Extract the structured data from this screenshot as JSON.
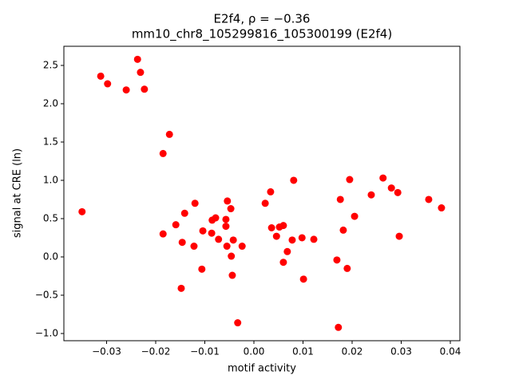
{
  "chart_data": {
    "type": "scatter",
    "title": "E2f4, ρ = −0.36",
    "subtitle": "mm10_chr8_105299816_105300199 (E2f4)",
    "x_label": "motif activity",
    "y_label": "signal at CRE (ln)",
    "color": "red",
    "x": [
      -0.035,
      -0.0312,
      -0.0298,
      -0.026,
      -0.0237,
      -0.0231,
      -0.0223,
      -0.0172,
      -0.0185,
      -0.0185,
      -0.0159,
      -0.0141,
      -0.0146,
      -0.0148,
      -0.012,
      -0.0122,
      -0.0106,
      -0.0104,
      -0.0086,
      -0.0085,
      -0.0078,
      -0.0072,
      -0.0057,
      -0.0057,
      -0.0054,
      -0.0055,
      -0.0047,
      -0.0046,
      -0.0044,
      -0.0042,
      -0.0033,
      -0.0024,
      0.0023,
      0.0034,
      0.0036,
      0.0046,
      0.0052,
      0.006,
      0.006,
      0.0068,
      0.0078,
      0.0081,
      0.0098,
      0.0101,
      0.0122,
      0.0169,
      0.0172,
      0.0176,
      0.0182,
      0.019,
      0.0195,
      0.0205,
      0.0239,
      0.0263,
      0.028,
      0.0293,
      0.0296,
      0.0356,
      0.0382
    ],
    "values": [
      0.59,
      2.36,
      2.26,
      2.18,
      2.58,
      2.41,
      2.19,
      1.6,
      1.35,
      0.3,
      0.42,
      0.57,
      0.19,
      -0.41,
      0.7,
      0.14,
      -0.16,
      0.34,
      0.31,
      0.48,
      0.51,
      0.23,
      0.49,
      0.4,
      0.73,
      0.14,
      0.63,
      0.01,
      -0.24,
      0.22,
      -0.86,
      0.14,
      0.7,
      0.85,
      0.38,
      0.27,
      0.39,
      0.41,
      -0.07,
      0.07,
      0.22,
      1.0,
      0.25,
      -0.29,
      0.23,
      -0.04,
      -0.92,
      0.75,
      0.35,
      -0.15,
      1.01,
      0.53,
      0.81,
      1.03,
      0.9,
      0.84,
      0.27,
      0.75,
      0.64
    ],
    "xlim": [
      -0.0387,
      0.04195
    ],
    "ylim": [
      -1.094,
      2.75
    ],
    "xticks": [
      {
        "value": -0.03,
        "label": "−0.03"
      },
      {
        "value": -0.02,
        "label": "−0.02"
      },
      {
        "value": -0.01,
        "label": "−0.01"
      },
      {
        "value": 0,
        "label": "0.00"
      },
      0.01,
      0.02,
      0.03,
      0.04
    ],
    "yticks": [
      {
        "value": -1,
        "label": "−1.0"
      },
      {
        "value": -0.5,
        "label": "−0.5"
      },
      {
        "value": 0,
        "label": "0.0"
      },
      0.5,
      {
        "value": 1,
        "label": "1.0"
      },
      1.5,
      {
        "value": 2,
        "label": "2.0"
      },
      2.5
    ],
    "grid": false
  }
}
